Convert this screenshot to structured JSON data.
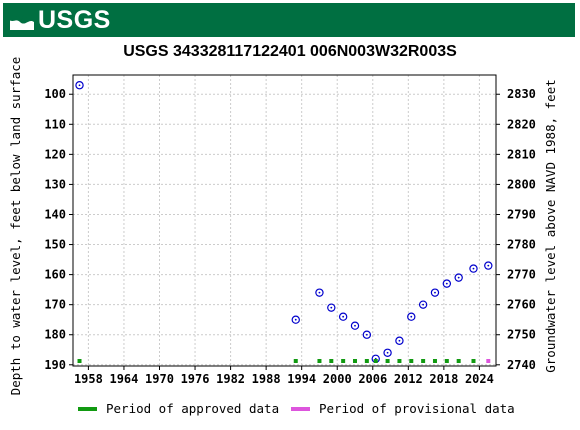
{
  "header": {
    "logo_text": "USGS"
  },
  "chart_data": {
    "type": "scatter",
    "title": "USGS 343328117122401 006N003W32R003S",
    "ylabel_left": "Depth to water level, feet below land surface",
    "ylabel_right": "Groundwater level above NAVD 1988, feet",
    "x_ticks": [
      "1958",
      "1964",
      "1970",
      "1976",
      "1982",
      "1988",
      "1994",
      "2000",
      "2006",
      "2012",
      "2018",
      "2024"
    ],
    "y_ticks_left": [
      100,
      110,
      120,
      130,
      140,
      150,
      160,
      170,
      180,
      190
    ],
    "y_ticks_right": [
      2830,
      2820,
      2810,
      2800,
      2790,
      2780,
      2770,
      2760,
      2750,
      2740
    ],
    "xlim": [
      1955.4,
      2026.8
    ],
    "ylim_left": [
      93.6,
      190.4
    ],
    "ylim_right": [
      2836.4,
      2739.6
    ],
    "y_inverted": true,
    "series": [
      {
        "kind": "measurements",
        "x": [
          1956.5,
          1993.0,
          1997.0,
          1999.0,
          2001.0,
          2003.0,
          2005.0,
          2006.5,
          2008.5,
          2010.5,
          2012.5,
          2014.5,
          2016.5,
          2018.5,
          2020.5,
          2023.0,
          2025.5
        ],
        "y": [
          97,
          175,
          166,
          171,
          174,
          177,
          180,
          188,
          186,
          182,
          174,
          170,
          166,
          163,
          161,
          158,
          157
        ]
      }
    ],
    "approval_periods": {
      "approved_x": [
        1956.5,
        1993.0,
        1997.0,
        1999.0,
        2001.0,
        2003.0,
        2005.0,
        2006.5,
        2008.5,
        2010.5,
        2012.5,
        2014.5,
        2016.5,
        2018.5,
        2020.5,
        2023.0
      ],
      "provisional_x": [
        2025.5
      ]
    },
    "legend": [
      {
        "label": "Period of approved data",
        "color": "#119a11"
      },
      {
        "label": "Period of provisional data",
        "color": "#dd55dd"
      }
    ],
    "marker_color": "#0000cc",
    "grid": true,
    "legend_position": "bottom"
  }
}
